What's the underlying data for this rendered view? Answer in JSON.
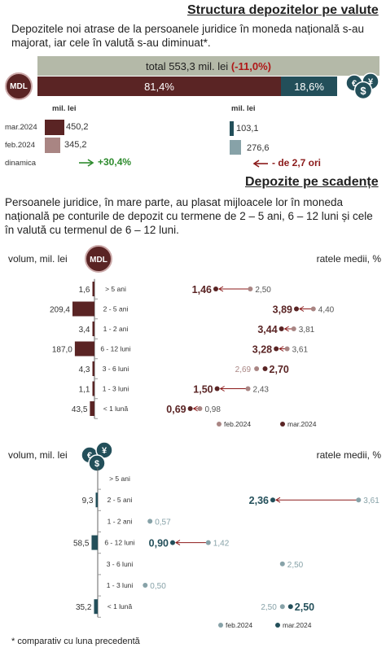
{
  "header": {
    "title": "Structura depozitelor pe valute",
    "intro": "Depozitele noi atrase de la persoanele juridice  în moneda națională s-au majorat, iar cele  în valută s-au diminuat*.",
    "total_label": "total 553,3 mil. lei",
    "total_change": "(-11,0%)",
    "mdl_share": "81,4%",
    "fx_share": "18,6%",
    "mdl_badge": "MDL",
    "fx_badge_symbols": [
      "€",
      "¥",
      "$"
    ]
  },
  "comparison": {
    "unit_left": "mil. lei",
    "unit_right": "mil. lei",
    "rows": [
      {
        "label": "mar.2024",
        "mdl": "450,2",
        "fx": "103,1"
      },
      {
        "label": "feb.2024",
        "mdl": "345,2",
        "fx": "276,6"
      }
    ],
    "dynamics_label": "dinamica",
    "mdl_dynamics": "+30,4%",
    "fx_dynamics": "- de 2,7 ori"
  },
  "maturity": {
    "title": "Depozite pe scadențe",
    "intro": "Persoanele juridice, în mare parte, au plasat mijloacele lor în moneda națională pe conturile de depozit cu termene de 2 – 5 ani, 6 – 12 luni și cele în valută cu termenul de 6 – 12 luni.",
    "footnote": "* comparativ cu luna precedentă"
  },
  "colors": {
    "mdl": "#5a2424",
    "mdl_light": "#a98583",
    "fx": "#234f5a",
    "fx_light": "#87a2a8",
    "total_bar": "#b4b9a8",
    "up_arrow": "#2e8b2e",
    "down_arrow": "#8b1a1a"
  },
  "chart_data": [
    {
      "type": "bar",
      "title": "",
      "categories": [
        "mar.2024",
        "feb.2024"
      ],
      "series": [
        {
          "name": "MDL",
          "values": [
            450.2,
            345.2
          ]
        },
        {
          "name": "valută",
          "values": [
            103.1,
            276.6
          ]
        }
      ],
      "ylabel": "mil. lei"
    },
    {
      "type": "bar",
      "title": "",
      "currency": "MDL",
      "volume_label": "volum, mil. lei",
      "rate_label": "ratele medii, %",
      "legend": [
        "feb.2024",
        "mar.2024"
      ],
      "categories": [
        "> 5 ani",
        "2 - 5 ani",
        "1 - 2 ani",
        "6 - 12 luni",
        "3 - 6 luni",
        "1 - 3 luni",
        "< 1 lună"
      ],
      "volume_labels": [
        "1,6",
        "209,4",
        "3,4",
        "187,0",
        "4,3",
        "1,1",
        "43,5"
      ],
      "volume": [
        1.6,
        209.4,
        3.4,
        187.0,
        4.3,
        1.1,
        43.5
      ],
      "rate_mar": [
        1.46,
        3.89,
        3.44,
        3.28,
        2.7,
        1.5,
        0.69
      ],
      "rate_feb": [
        2.5,
        4.4,
        3.81,
        3.61,
        2.69,
        2.43,
        0.98
      ],
      "rate_mar_labels": [
        "1,46",
        "3,89",
        "3,44",
        "3,28",
        "2,70",
        "1,50",
        "0,69"
      ],
      "rate_feb_labels": [
        "2,50",
        "4,40",
        "3,81",
        "3,61",
        "2,69",
        "2,43",
        "0,98"
      ]
    },
    {
      "type": "bar",
      "title": "",
      "currency": "valută",
      "volume_label": "volum, mil. lei",
      "rate_label": "ratele medii, %",
      "legend": [
        "feb.2024",
        "mar.2024"
      ],
      "categories": [
        "> 5 ani",
        "2 - 5 ani",
        "1 - 2 ani",
        "6 - 12 luni",
        "3 - 6 luni",
        "1 - 3 luni",
        "< 1 lună"
      ],
      "volume_labels": [
        "",
        "9,3",
        "",
        "58,5",
        "",
        "",
        "35,2"
      ],
      "volume": [
        null,
        9.3,
        null,
        58.5,
        null,
        null,
        35.2
      ],
      "rate_mar": [
        null,
        2.36,
        null,
        0.9,
        null,
        null,
        2.5
      ],
      "rate_feb": [
        null,
        3.61,
        0.57,
        1.42,
        2.5,
        0.5,
        2.5
      ],
      "rate_mar_labels": [
        "",
        "2,36",
        "",
        "0,90",
        "",
        "",
        "2,50"
      ],
      "rate_feb_labels": [
        "",
        "3,61",
        "0,57",
        "1,42",
        "2,50",
        "0,50",
        "2,50"
      ]
    }
  ]
}
